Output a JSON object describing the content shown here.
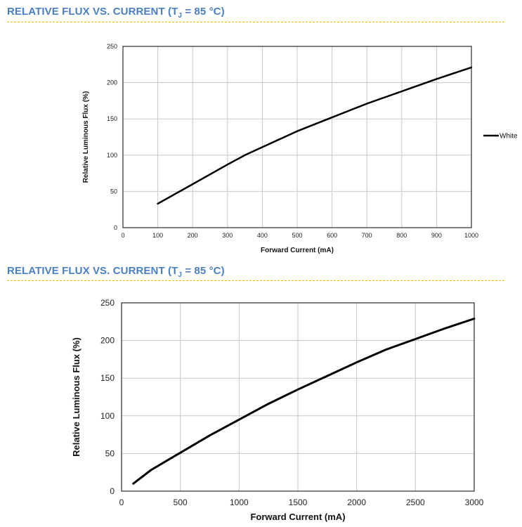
{
  "headings": [
    {
      "pre": "RELATIVE FLUX VS. CURRENT (T",
      "sub": "J",
      "post": " = 85 °C)"
    },
    {
      "pre": "RELATIVE FLUX VS. CURRENT (T",
      "sub": "J",
      "post": " = 85 °C)"
    }
  ],
  "colors": {
    "heading": "#4a7fc1",
    "rule": "#f2b800",
    "grid": "#c8c8c8",
    "line": "#000000"
  },
  "chart_data": [
    {
      "type": "line",
      "title": "RELATIVE FLUX VS. CURRENT (TJ = 85 °C)",
      "xlabel": "Forward Current (mA)",
      "ylabel": "Relative Luminous Flux (%)",
      "xlim": [
        0,
        1000
      ],
      "ylim": [
        0,
        250
      ],
      "xticks": [
        0,
        100,
        200,
        300,
        400,
        500,
        600,
        700,
        800,
        900,
        1000
      ],
      "yticks": [
        0,
        50,
        100,
        150,
        200,
        250
      ],
      "grid": true,
      "legend": "right",
      "series": [
        {
          "name": "White",
          "x": [
            100,
            200,
            300,
            350,
            400,
            500,
            600,
            700,
            800,
            900,
            1000
          ],
          "y": [
            33,
            60,
            87,
            100,
            111,
            133,
            152,
            171,
            188,
            205,
            221
          ]
        }
      ]
    },
    {
      "type": "line",
      "title": "RELATIVE FLUX VS. CURRENT (TJ = 85 °C)",
      "xlabel": "Forward Current (mA)",
      "ylabel": "Relative Luminous Flux (%)",
      "xlim": [
        0,
        3000
      ],
      "ylim": [
        0,
        250
      ],
      "xticks": [
        0,
        500,
        1000,
        1500,
        2000,
        2500,
        3000
      ],
      "yticks": [
        0,
        50,
        100,
        150,
        200,
        250
      ],
      "grid": true,
      "series": [
        {
          "name": "",
          "x": [
            100,
            250,
            500,
            750,
            1000,
            1250,
            1500,
            1750,
            2000,
            2250,
            2500,
            2750,
            3000
          ],
          "y": [
            10,
            28,
            51,
            74,
            95,
            116,
            135,
            153,
            171,
            188,
            202,
            216,
            229
          ]
        }
      ]
    }
  ]
}
